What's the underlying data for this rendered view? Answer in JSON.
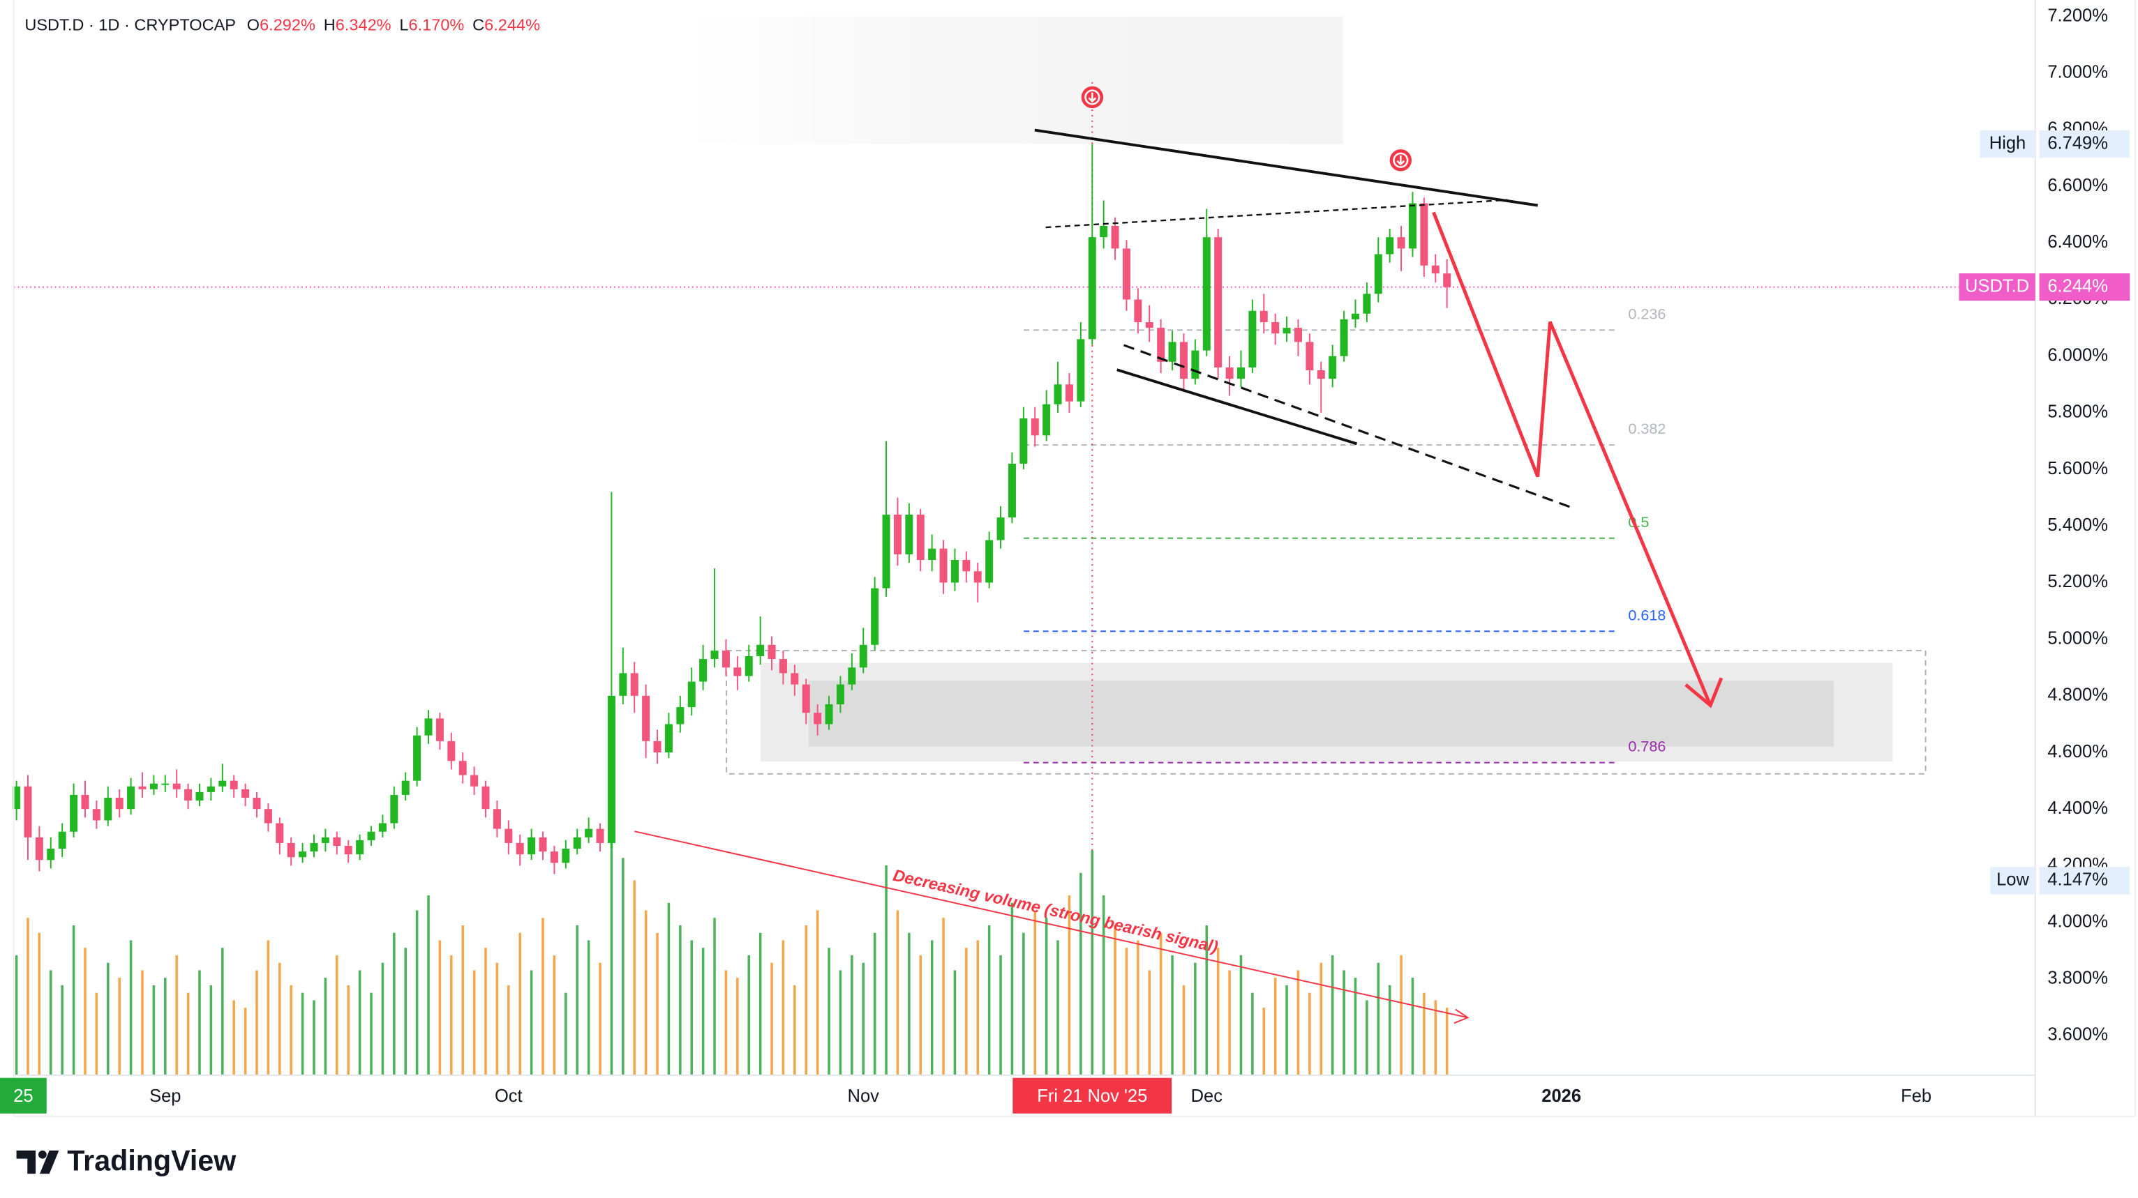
{
  "chart_data": {
    "type": "candlestick",
    "header": {
      "symbol": "USDT.D · 1D · CRYPTOCAP",
      "open_label": "O",
      "open": "6.292%",
      "high_label": "H",
      "high": "6.342%",
      "low_label": "L",
      "low": "6.170%",
      "close_label": "C",
      "close": "6.244%"
    },
    "open": [
      4.4,
      4.48,
      4.3,
      4.22,
      4.26,
      4.32,
      4.45,
      4.4,
      4.36,
      4.44,
      4.4,
      4.48,
      4.47,
      4.49,
      4.49,
      4.47,
      4.43,
      4.46,
      4.48,
      4.5,
      4.47,
      4.44,
      4.4,
      4.35,
      4.28,
      4.23,
      4.25,
      4.28,
      4.3,
      4.27,
      4.24,
      4.29,
      4.32,
      4.35,
      4.45,
      4.5,
      4.66,
      4.72,
      4.64,
      4.57,
      4.52,
      4.48,
      4.4,
      4.33,
      4.28,
      4.24,
      4.3,
      4.25,
      4.21,
      4.26,
      4.3,
      4.33,
      4.28,
      4.8,
      4.88,
      4.8,
      4.64,
      4.6,
      4.7,
      4.76,
      4.85,
      4.93,
      4.96,
      4.9,
      4.87,
      4.94,
      4.98,
      4.93,
      4.88,
      4.84,
      4.74,
      4.7,
      4.77,
      4.84,
      4.9,
      4.98,
      5.18,
      5.44,
      5.3,
      5.44,
      5.28,
      5.32,
      5.2,
      5.28,
      5.24,
      5.2,
      5.35,
      5.43,
      5.62,
      5.78,
      5.72,
      5.83,
      5.9,
      5.84,
      6.06,
      6.42,
      6.46,
      6.38,
      6.2,
      6.12,
      6.1,
      5.98,
      6.05,
      5.92,
      6.02,
      6.42,
      5.96,
      5.92,
      5.96,
      6.16,
      6.12,
      6.08,
      6.1,
      6.05,
      5.95,
      5.92,
      6.0,
      6.13,
      6.15,
      6.22,
      6.36,
      6.42,
      6.38,
      6.54,
      6.32,
      6.292
    ],
    "high": [
      4.5,
      4.52,
      4.34,
      4.3,
      4.35,
      4.49,
      4.5,
      4.43,
      4.48,
      4.47,
      4.51,
      4.53,
      4.52,
      4.52,
      4.54,
      4.49,
      4.49,
      4.51,
      4.56,
      4.52,
      4.49,
      4.46,
      4.42,
      4.37,
      4.3,
      4.28,
      4.31,
      4.33,
      4.32,
      4.29,
      4.31,
      4.34,
      4.38,
      4.48,
      4.53,
      4.69,
      4.75,
      4.74,
      4.67,
      4.6,
      4.55,
      4.5,
      4.43,
      4.36,
      4.31,
      4.33,
      4.32,
      4.27,
      4.29,
      4.33,
      4.37,
      4.35,
      5.52,
      4.97,
      4.92,
      4.84,
      4.68,
      4.74,
      4.8,
      4.9,
      4.98,
      5.25,
      5.0,
      4.94,
      4.98,
      5.08,
      5.01,
      4.96,
      4.91,
      4.86,
      4.77,
      4.8,
      4.87,
      4.95,
      5.04,
      5.22,
      5.7,
      5.5,
      5.48,
      5.46,
      5.37,
      5.35,
      5.32,
      5.31,
      5.27,
      5.38,
      5.47,
      5.66,
      5.82,
      5.82,
      5.88,
      5.98,
      5.94,
      6.12,
      6.749,
      6.55,
      6.49,
      6.41,
      6.24,
      6.18,
      6.13,
      6.09,
      6.08,
      6.06,
      6.52,
      6.45,
      6.0,
      6.02,
      6.2,
      6.22,
      6.15,
      6.14,
      6.13,
      6.08,
      5.98,
      6.04,
      6.16,
      6.2,
      6.26,
      6.42,
      6.45,
      6.46,
      6.58,
      6.56,
      6.36,
      6.342
    ],
    "low": [
      4.36,
      4.22,
      4.18,
      4.19,
      4.23,
      4.3,
      4.37,
      4.33,
      4.34,
      4.37,
      4.38,
      4.44,
      4.45,
      4.46,
      4.44,
      4.4,
      4.41,
      4.43,
      4.46,
      4.44,
      4.41,
      4.37,
      4.32,
      4.24,
      4.2,
      4.21,
      4.23,
      4.25,
      4.24,
      4.21,
      4.22,
      4.27,
      4.3,
      4.33,
      4.43,
      4.48,
      4.63,
      4.61,
      4.54,
      4.49,
      4.45,
      4.37,
      4.3,
      4.24,
      4.2,
      4.22,
      4.22,
      4.17,
      4.19,
      4.24,
      4.28,
      4.25,
      4.26,
      4.77,
      4.74,
      4.58,
      4.56,
      4.58,
      4.67,
      4.73,
      4.82,
      4.9,
      4.87,
      4.82,
      4.85,
      4.91,
      4.89,
      4.84,
      4.8,
      4.7,
      4.66,
      4.68,
      4.74,
      4.82,
      4.88,
      4.96,
      5.15,
      5.26,
      5.27,
      5.24,
      5.24,
      5.16,
      5.17,
      5.2,
      5.13,
      5.18,
      5.32,
      5.41,
      5.6,
      5.68,
      5.7,
      5.8,
      5.8,
      5.82,
      6.04,
      6.38,
      6.34,
      6.16,
      6.08,
      6.05,
      5.94,
      5.95,
      5.88,
      5.9,
      6.0,
      5.92,
      5.86,
      5.89,
      5.94,
      6.08,
      6.04,
      6.05,
      6.0,
      5.9,
      5.8,
      5.89,
      5.98,
      6.1,
      6.12,
      6.19,
      6.33,
      6.3,
      6.35,
      6.28,
      6.26,
      6.17
    ],
    "close": [
      4.48,
      4.3,
      4.22,
      4.26,
      4.32,
      4.45,
      4.4,
      4.36,
      4.44,
      4.4,
      4.48,
      4.47,
      4.49,
      4.49,
      4.47,
      4.43,
      4.46,
      4.48,
      4.5,
      4.47,
      4.44,
      4.4,
      4.35,
      4.28,
      4.23,
      4.25,
      4.28,
      4.3,
      4.27,
      4.24,
      4.29,
      4.32,
      4.35,
      4.45,
      4.5,
      4.66,
      4.72,
      4.64,
      4.57,
      4.52,
      4.48,
      4.4,
      4.33,
      4.28,
      4.24,
      4.3,
      4.25,
      4.21,
      4.26,
      4.3,
      4.33,
      4.28,
      4.8,
      4.88,
      4.8,
      4.64,
      4.6,
      4.7,
      4.76,
      4.85,
      4.93,
      4.96,
      4.9,
      4.87,
      4.94,
      4.98,
      4.93,
      4.88,
      4.84,
      4.74,
      4.7,
      4.77,
      4.84,
      4.9,
      4.98,
      5.18,
      5.44,
      5.3,
      5.44,
      5.28,
      5.32,
      5.2,
      5.28,
      5.24,
      5.2,
      5.35,
      5.43,
      5.62,
      5.78,
      5.72,
      5.83,
      5.9,
      5.84,
      6.06,
      6.42,
      6.46,
      6.38,
      6.2,
      6.12,
      6.1,
      5.98,
      6.05,
      5.92,
      6.02,
      6.42,
      5.96,
      5.92,
      5.96,
      6.16,
      6.12,
      6.08,
      6.1,
      6.05,
      5.95,
      5.92,
      6.0,
      6.13,
      6.15,
      6.22,
      6.36,
      6.42,
      6.38,
      6.54,
      6.32,
      6.292,
      6.244
    ],
    "volume": [
      80,
      105,
      95,
      70,
      60,
      100,
      85,
      55,
      75,
      65,
      90,
      70,
      60,
      65,
      80,
      55,
      70,
      60,
      85,
      50,
      45,
      70,
      90,
      75,
      60,
      55,
      50,
      65,
      80,
      60,
      70,
      55,
      75,
      95,
      85,
      110,
      120,
      90,
      80,
      100,
      70,
      85,
      75,
      60,
      95,
      70,
      105,
      80,
      55,
      100,
      90,
      75,
      160,
      145,
      130,
      110,
      95,
      115,
      100,
      90,
      85,
      105,
      70,
      65,
      80,
      95,
      75,
      90,
      60,
      100,
      110,
      85,
      70,
      80,
      75,
      95,
      140,
      110,
      95,
      80,
      90,
      105,
      70,
      85,
      90,
      100,
      80,
      115,
      95,
      110,
      105,
      90,
      120,
      135,
      150,
      120,
      100,
      85,
      90,
      70,
      95,
      80,
      60,
      75,
      100,
      85,
      70,
      80,
      55,
      45,
      65,
      60,
      70,
      55,
      75,
      80,
      70,
      65,
      50,
      75,
      60,
      80,
      65,
      55,
      50,
      45
    ],
    "up_color": "#22b622",
    "down_color": "#f2557c",
    "volume_up_color": "#4cb35a",
    "volume_down_color": "#f6a64a",
    "xlim": [
      -0.24,
      176.4
    ],
    "xticks": [
      {
        "value": 13,
        "label": "Sep"
      },
      {
        "value": 43,
        "label": "Oct"
      },
      {
        "value": 74,
        "label": "Nov"
      },
      {
        "value": 104,
        "label": "Dec"
      },
      {
        "value": 135,
        "label": "2026"
      },
      {
        "value": 166,
        "label": "Feb"
      }
    ],
    "ylim": [
      3.46,
      7.258
    ],
    "yticks": [
      {
        "value": 3.6,
        "label": "3.600%"
      },
      {
        "value": 3.8,
        "label": "3.800%"
      },
      {
        "value": 4.0,
        "label": "4.000%"
      },
      {
        "value": 4.2,
        "label": "4.200%"
      },
      {
        "value": 4.4,
        "label": "4.400%"
      },
      {
        "value": 4.6,
        "label": "4.600%"
      },
      {
        "value": 4.8,
        "label": "4.800%"
      },
      {
        "value": 5.0,
        "label": "5.000%"
      },
      {
        "value": 5.2,
        "label": "5.200%"
      },
      {
        "value": 5.4,
        "label": "5.400%"
      },
      {
        "value": 5.6,
        "label": "5.600%"
      },
      {
        "value": 5.8,
        "label": "5.800%"
      },
      {
        "value": 6.0,
        "label": "6.000%"
      },
      {
        "value": 6.2,
        "label": "6.200%"
      },
      {
        "value": 6.4,
        "label": "6.400%"
      },
      {
        "value": 6.6,
        "label": "6.600%"
      },
      {
        "value": 6.8,
        "label": "6.800%"
      },
      {
        "value": 7.0,
        "label": "7.000%"
      },
      {
        "value": 7.2,
        "label": "7.200%"
      }
    ],
    "price_labels": [
      {
        "name": "High",
        "value": 6.749,
        "label": "6.749%",
        "background": "#e3effd",
        "text_color": "#131722",
        "line": false
      },
      {
        "name": "USDT.D",
        "value": 6.244,
        "label": "6.244%",
        "background": "#f05cc8",
        "text_color": "#ffffff",
        "line": true
      },
      {
        "name": "Low",
        "value": 4.147,
        "label": "4.147%",
        "background": "#e3effd",
        "text_color": "#131722",
        "line": false
      }
    ],
    "fib_levels": [
      {
        "label": "0.236",
        "value": 6.092,
        "color": "#b2b5be"
      },
      {
        "label": "0.382",
        "value": 5.686,
        "color": "#b2b5be"
      },
      {
        "label": "0.5",
        "value": 5.357,
        "color": "#4caf50"
      },
      {
        "label": "0.618",
        "value": 5.028,
        "color": "#2962ff"
      },
      {
        "label": "0.786",
        "value": 4.564,
        "color": "#9c27b0"
      }
    ],
    "crosshair": {
      "x": 94,
      "label": "Fri 21 Nov '25"
    },
    "left_date_label": "25",
    "annotation": "Decreasing volume (strong bearish signal)",
    "brand": "TradingView"
  }
}
